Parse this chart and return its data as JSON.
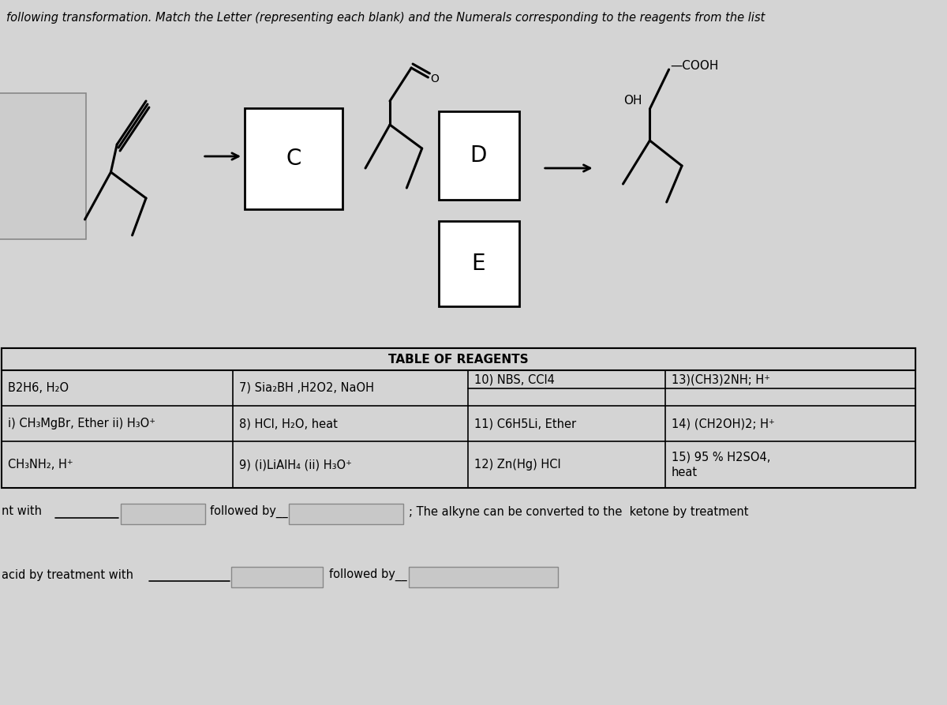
{
  "bg_color": "#d4d4d4",
  "title_text": "following transformation. Match the Letter (representing each blank) and the Numerals corresponding to the reagents from the list",
  "table_header": "TABLE OF REAGENTS",
  "col1_items": [
    "B2H6, H₂O",
    "i) CH₃MgBr, Ether ii) H₃O⁺",
    "CH₃NH₂, H⁺"
  ],
  "col2_items": [
    "7) Sia₂BH ,H2O2, NaOH",
    "8) HCl, H₂O, heat",
    "9) (i)LiAlH₄ (ii) H₃O⁺"
  ],
  "col3_items": [
    "10) NBS, CCl4",
    "11) C6H5Li, Ether",
    "12) Zn(Hg) HCl"
  ],
  "col4_items": [
    "13)(CH3)2NH; H⁺",
    "14) (CH2OH)2; H⁺",
    "15) 95 % H2SO4,\nheat"
  ]
}
